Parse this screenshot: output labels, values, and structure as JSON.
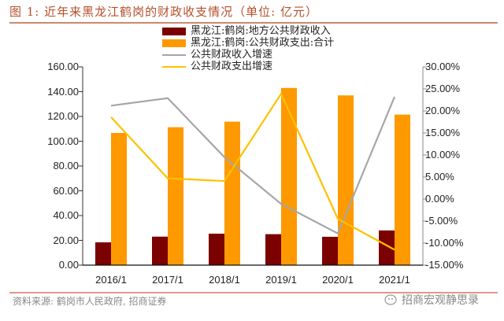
{
  "title": "图 1: 近年来黑龙江鹤岗的财政收支情况（单位: 亿元）",
  "legend": [
    {
      "label": "黑龙江:鹤岗:地方公共财政收入",
      "type": "bar",
      "color": "#7b0000"
    },
    {
      "label": "黑龙江:鹤岗:公共财政支出:合计",
      "type": "bar",
      "color": "#ff9900"
    },
    {
      "label": "公共财政收入增速",
      "type": "line",
      "color": "#a6a6a6"
    },
    {
      "label": "公共财政支出增速",
      "type": "line",
      "color": "#ffc000"
    }
  ],
  "left_axis_ticks": [
    "160.00",
    "140.00",
    "120.00",
    "100.00",
    "80.00",
    "60.00",
    "40.00",
    "20.00",
    "0.00"
  ],
  "right_axis_ticks": [
    "30.00%",
    "25.00%",
    "20.00%",
    "15.00%",
    "10.00%",
    "5.00%",
    "0.00%",
    "-5.00%",
    "-10.00%",
    "-15.00%"
  ],
  "source": "资料来源: 鹤岗市人民政府, 招商证券",
  "brand": "招商宏观静思录",
  "chart_data": {
    "type": "bar",
    "title": "近年来黑龙江鹤岗的财政收支情况（单位: 亿元）",
    "categories": [
      "2016/1",
      "2017/1",
      "2018/1",
      "2019/1",
      "2020/1",
      "2021/1"
    ],
    "series": [
      {
        "name": "黑龙江:鹤岗:地方公共财政收入",
        "type": "bar",
        "axis": "left",
        "color": "#7b0000",
        "values": [
          18.4,
          23.0,
          25.4,
          25.0,
          22.9,
          28.0
        ]
      },
      {
        "name": "黑龙江:鹤岗:公共财政支出:合计",
        "type": "bar",
        "axis": "left",
        "color": "#ff9900",
        "values": [
          106.7,
          111.3,
          115.8,
          143.0,
          137.0,
          121.5
        ]
      },
      {
        "name": "公共财政收入增速",
        "type": "line",
        "axis": "right",
        "color": "#a6a6a6",
        "values": [
          21.2,
          22.9,
          9.5,
          -1.1,
          -7.8,
          23.2
        ]
      },
      {
        "name": "公共财政支出增速",
        "type": "line",
        "axis": "right",
        "color": "#ffc000",
        "values": [
          18.6,
          4.7,
          4.1,
          23.9,
          -4.5,
          -11.5
        ]
      }
    ],
    "xlabel": "",
    "ylabel_left": "亿元",
    "ylim_left": [
      0,
      160
    ],
    "ylim_right": [
      -15,
      30
    ],
    "ylabel_right": "%",
    "grid": false,
    "legend_position": "top"
  }
}
